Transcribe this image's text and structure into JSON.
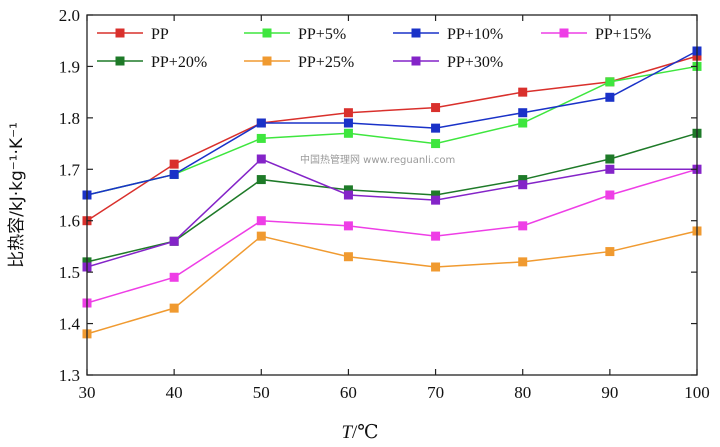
{
  "chart_data": {
    "type": "line",
    "xlabel_var": "T",
    "xlabel_unit": "/℃",
    "ylabel": "比热容/kJ·kg⁻¹·K⁻¹",
    "xlim": [
      30,
      100
    ],
    "ylim": [
      1.3,
      2.0
    ],
    "x": [
      30,
      40,
      50,
      60,
      70,
      80,
      90,
      100
    ],
    "x_ticks": [
      "30",
      "40",
      "50",
      "60",
      "70",
      "80",
      "90",
      "100"
    ],
    "y_ticks": [
      "1.3",
      "1.4",
      "1.5",
      "1.6",
      "1.7",
      "1.8",
      "1.9",
      "2.0"
    ],
    "legend_placement": "top-left, 4 columns",
    "series": [
      {
        "name": "PP",
        "color": "#d9302c",
        "values": [
          1.6,
          1.71,
          1.79,
          1.81,
          1.82,
          1.85,
          1.87,
          1.92
        ]
      },
      {
        "name": "PP+5%",
        "color": "#3ee63e",
        "values": [
          1.65,
          1.69,
          1.76,
          1.77,
          1.75,
          1.79,
          1.87,
          1.9
        ]
      },
      {
        "name": "PP+10%",
        "color": "#1a32c8",
        "values": [
          1.65,
          1.69,
          1.79,
          1.79,
          1.78,
          1.81,
          1.84,
          1.93
        ]
      },
      {
        "name": "PP+15%",
        "color": "#ee3ee6",
        "values": [
          1.44,
          1.49,
          1.6,
          1.59,
          1.57,
          1.59,
          1.65,
          1.7
        ]
      },
      {
        "name": "PP+20%",
        "color": "#1e7a28",
        "values": [
          1.52,
          1.56,
          1.68,
          1.66,
          1.65,
          1.68,
          1.72,
          1.77
        ]
      },
      {
        "name": "PP+25%",
        "color": "#f09a30",
        "values": [
          1.38,
          1.43,
          1.57,
          1.53,
          1.51,
          1.52,
          1.54,
          1.58
        ]
      },
      {
        "name": "PP+30%",
        "color": "#8424c8",
        "values": [
          1.51,
          1.56,
          1.72,
          1.65,
          1.64,
          1.67,
          1.7,
          1.7
        ]
      }
    ]
  },
  "watermark": {
    "text": "中国热管理网 www.reguanli.com",
    "color": "#9a9a9a"
  }
}
